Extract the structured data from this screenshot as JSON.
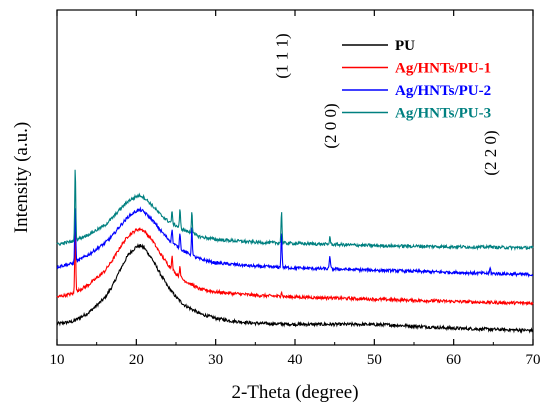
{
  "chart_data": {
    "type": "line",
    "title": "",
    "xlabel": "2-Theta (degree)",
    "ylabel": "Intensity (a.u.)",
    "xlim": [
      10,
      70
    ],
    "x_ticks": [
      10,
      20,
      30,
      40,
      50,
      60,
      70
    ],
    "y_ticks_shown": false,
    "grid": false,
    "legend_position": "top-right",
    "series": [
      {
        "name": "PU",
        "color": "#000000",
        "baseline": 11.5,
        "points": [
          [
            10,
            0.4
          ],
          [
            12,
            0.6
          ],
          [
            14,
            1.4
          ],
          [
            16,
            2.7
          ],
          [
            17,
            3.8
          ],
          [
            18,
            5.3
          ],
          [
            19,
            6.6
          ],
          [
            20,
            7.3
          ],
          [
            20.5,
            7.4
          ],
          [
            21,
            7.2
          ],
          [
            22,
            6.2
          ],
          [
            23,
            4.9
          ],
          [
            24,
            3.7
          ],
          [
            25,
            2.8
          ],
          [
            26,
            2.1
          ],
          [
            27,
            1.7
          ],
          [
            28,
            1.3
          ],
          [
            30,
            0.9
          ],
          [
            32,
            0.65
          ],
          [
            35,
            0.45
          ],
          [
            40,
            0.35
          ],
          [
            45,
            0.35
          ],
          [
            48,
            0.35
          ],
          [
            52,
            0.3
          ],
          [
            56,
            0.15
          ],
          [
            60,
            0.0
          ],
          [
            65,
            -0.1
          ],
          [
            70,
            -0.2
          ]
        ],
        "peaks": []
      },
      {
        "name": "Ag/HNTs/PU-1",
        "color": "#ff0000",
        "baseline": 13.9,
        "points": [
          [
            10,
            0.4
          ],
          [
            12,
            0.7
          ],
          [
            14,
            1.5
          ],
          [
            16,
            2.7
          ],
          [
            17,
            3.7
          ],
          [
            18,
            4.9
          ],
          [
            19,
            5.9
          ],
          [
            20,
            6.4
          ],
          [
            20.5,
            6.5
          ],
          [
            21,
            6.3
          ],
          [
            22,
            5.5
          ],
          [
            23,
            4.3
          ],
          [
            24,
            3.3
          ],
          [
            25,
            2.5
          ],
          [
            26,
            1.9
          ],
          [
            27,
            1.5
          ],
          [
            28,
            1.1
          ],
          [
            30,
            0.85
          ],
          [
            35,
            0.55
          ],
          [
            40,
            0.4
          ],
          [
            45,
            0.3
          ],
          [
            50,
            0.2
          ],
          [
            55,
            0.1
          ],
          [
            60,
            0.0
          ],
          [
            65,
            -0.1
          ],
          [
            70,
            -0.15
          ]
        ],
        "peaks": [
          [
            12.3,
            5.8
          ],
          [
            24.5,
            1.2
          ],
          [
            25.5,
            1.0
          ],
          [
            38.3,
            0.45
          ],
          [
            44.4,
            0.2
          ]
        ]
      },
      {
        "name": "Ag/HNTs/PU-2",
        "color": "#0000ff",
        "baseline": 16.4,
        "points": [
          [
            10,
            0.6
          ],
          [
            12,
            0.9
          ],
          [
            14,
            1.7
          ],
          [
            16,
            2.7
          ],
          [
            17,
            3.4
          ],
          [
            18,
            4.3
          ],
          [
            19,
            5.1
          ],
          [
            20,
            5.6
          ],
          [
            20.5,
            5.7
          ],
          [
            21,
            5.5
          ],
          [
            22,
            4.8
          ],
          [
            23,
            3.9
          ],
          [
            24,
            3.1
          ],
          [
            25,
            2.5
          ],
          [
            26,
            2.0
          ],
          [
            27,
            1.6
          ],
          [
            28,
            1.3
          ],
          [
            30,
            0.95
          ],
          [
            35,
            0.65
          ],
          [
            40,
            0.5
          ],
          [
            45,
            0.4
          ],
          [
            50,
            0.3
          ],
          [
            55,
            0.2
          ],
          [
            60,
            0.1
          ],
          [
            65,
            0.0
          ],
          [
            70,
            -0.1
          ]
        ],
        "peaks": [
          [
            12.3,
            5.2
          ],
          [
            24.5,
            1.2
          ],
          [
            25.5,
            1.5
          ],
          [
            27.0,
            2.5
          ],
          [
            38.3,
            3.2
          ],
          [
            44.4,
            1.2
          ],
          [
            64.6,
            0.5
          ]
        ]
      },
      {
        "name": "Ag/HNTs/PU-3",
        "color": "#008080",
        "baseline": 18.6,
        "points": [
          [
            10,
            0.4
          ],
          [
            12,
            0.7
          ],
          [
            14,
            1.3
          ],
          [
            16,
            2.1
          ],
          [
            17,
            2.8
          ],
          [
            18,
            3.6
          ],
          [
            19,
            4.3
          ],
          [
            20,
            4.7
          ],
          [
            20.5,
            4.8
          ],
          [
            21,
            4.6
          ],
          [
            22,
            3.9
          ],
          [
            23,
            3.1
          ],
          [
            24,
            2.5
          ],
          [
            25,
            2.1
          ],
          [
            26,
            1.7
          ],
          [
            27,
            1.4
          ],
          [
            28,
            1.1
          ],
          [
            30,
            0.85
          ],
          [
            35,
            0.6
          ],
          [
            40,
            0.5
          ],
          [
            45,
            0.4
          ],
          [
            50,
            0.3
          ],
          [
            55,
            0.25
          ],
          [
            60,
            0.2
          ],
          [
            65,
            0.15
          ],
          [
            70,
            0.1
          ]
        ],
        "peaks": [
          [
            12.3,
            6.5
          ],
          [
            24.5,
            1.0
          ],
          [
            25.5,
            1.6
          ],
          [
            27.0,
            2.0
          ],
          [
            38.3,
            2.8
          ],
          [
            44.4,
            0.7
          ],
          [
            64.6,
            0.3
          ]
        ]
      }
    ],
    "annotations": [
      {
        "text": "(1 1 1)",
        "x": 38.3
      },
      {
        "text": "(2 0 0)",
        "x": 44.4
      },
      {
        "text": "(2 2 0)",
        "x": 64.6
      }
    ]
  }
}
